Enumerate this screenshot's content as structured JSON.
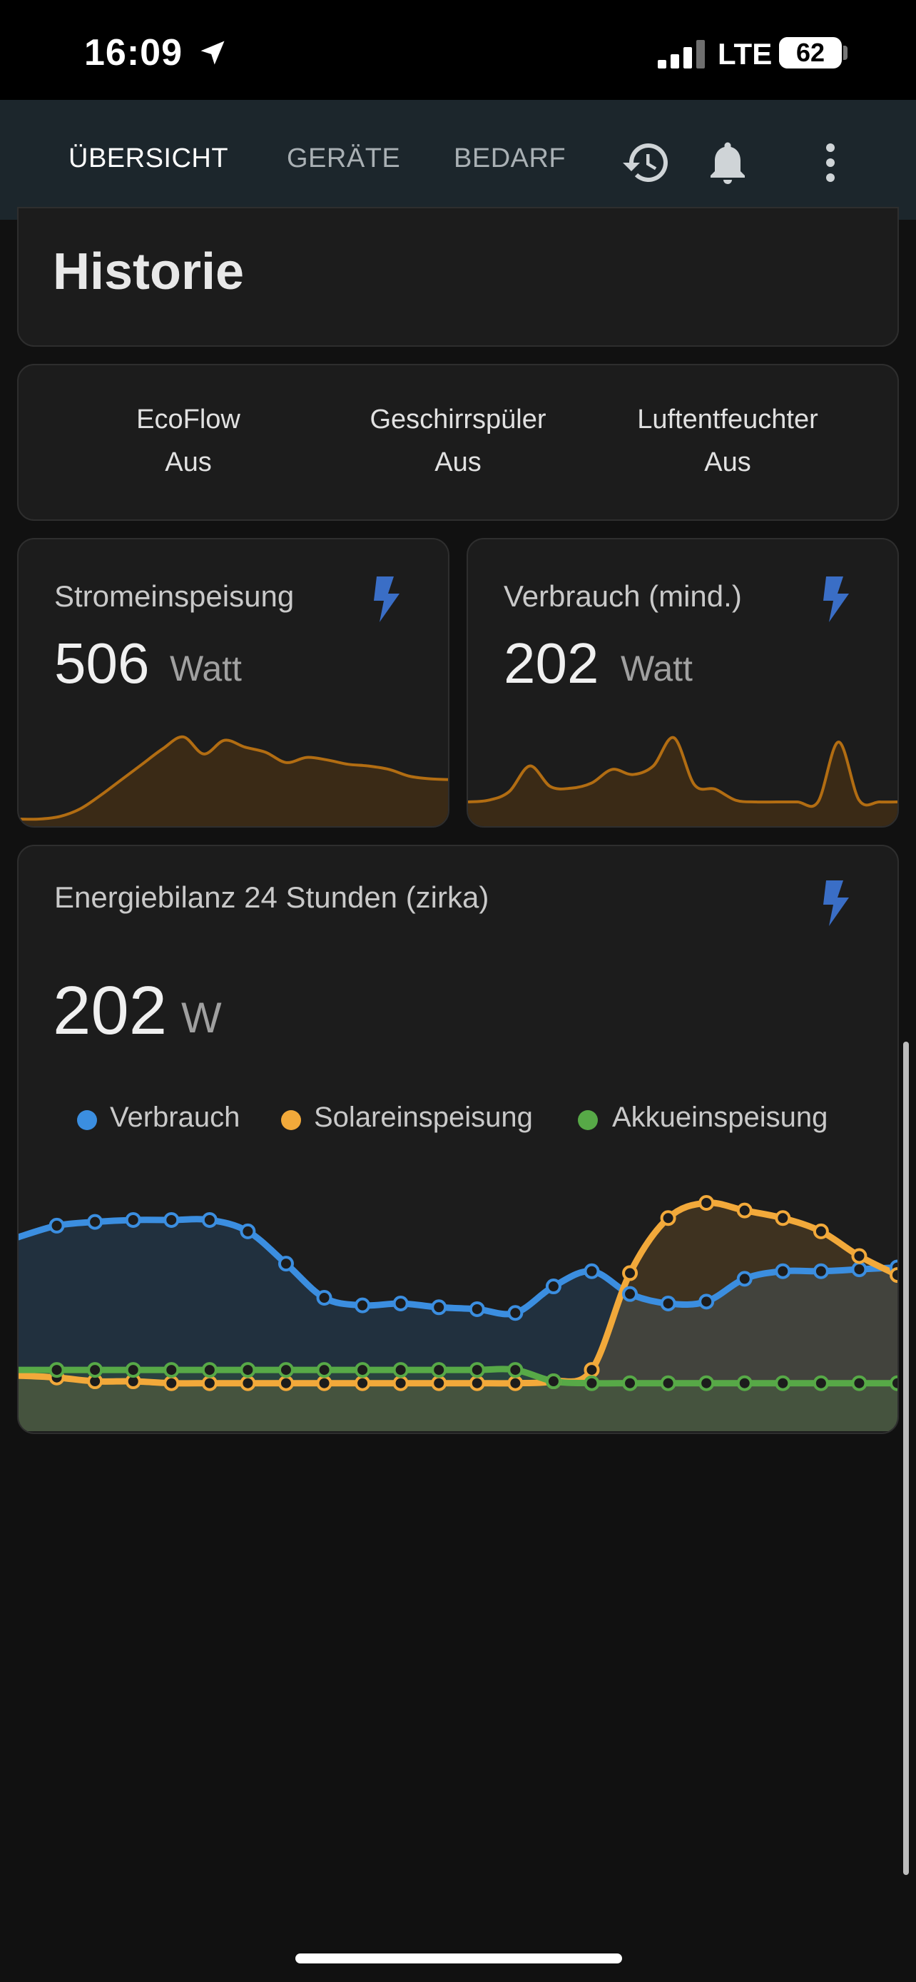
{
  "status_bar": {
    "time": "16:09",
    "network": "LTE",
    "battery": "62",
    "battery_level": 0.62
  },
  "tabs": [
    {
      "label": "ÜBERSICHT",
      "active": true
    },
    {
      "label": "GERÄTE",
      "active": false
    },
    {
      "label": "BEDARF",
      "active": false
    }
  ],
  "appbar_icons": [
    "history-icon",
    "bell-icon",
    "more-vertical-icon"
  ],
  "historie": {
    "title": "Historie"
  },
  "devices": [
    {
      "name": "EcoFlow",
      "state": "Aus"
    },
    {
      "name": "Geschirrspüler",
      "state": "Aus"
    },
    {
      "name": "Luftentfeuchter",
      "state": "Aus"
    }
  ],
  "sensors": [
    {
      "name": "Stromeinspeisung",
      "value": "506",
      "unit": "Watt",
      "icon": "flash-icon"
    },
    {
      "name": "Verbrauch (mind.)",
      "value": "202",
      "unit": "Watt",
      "icon": "flash-icon"
    }
  ],
  "energy": {
    "title": "Energiebilanz 24 Stunden (zirka)",
    "value": "202",
    "unit": "W",
    "icon": "flash-icon"
  },
  "colors": {
    "accent_blue": "#448aff",
    "chart_blue": "#3b8ee0",
    "chart_orange": "#f2a93a",
    "chart_green": "#57a947",
    "spark_orange": "#b26d12"
  },
  "chart_data": [
    {
      "type": "area",
      "series": [
        {
          "values": [
            0.0,
            0.0,
            0.03,
            0.12,
            0.28,
            0.46,
            0.64,
            0.82,
            0.96,
            0.76,
            0.92,
            0.84,
            0.78,
            0.66,
            0.72,
            0.69,
            0.64,
            0.62,
            0.58,
            0.5,
            0.47,
            0.46
          ]
        }
      ]
    },
    {
      "type": "area",
      "series": [
        {
          "values": [
            0.2,
            0.22,
            0.32,
            0.62,
            0.38,
            0.36,
            0.42,
            0.58,
            0.52,
            0.62,
            0.95,
            0.4,
            0.35,
            0.22,
            0.2,
            0.2,
            0.2,
            0.2,
            0.9,
            0.22,
            0.2,
            0.2
          ]
        }
      ]
    },
    {
      "type": "line",
      "legend": "top",
      "series": [
        {
          "name": "Verbrauch",
          "color": "#3b8ee0",
          "values": [
            0.82,
            0.88,
            0.9,
            0.91,
            0.91,
            0.91,
            0.85,
            0.68,
            0.5,
            0.46,
            0.47,
            0.45,
            0.44,
            0.42,
            0.56,
            0.64,
            0.52,
            0.47,
            0.48,
            0.6,
            0.64,
            0.64,
            0.65,
            0.66
          ]
        },
        {
          "name": "Solareinspeisung",
          "color": "#f2a93a",
          "values": [
            0.09,
            0.08,
            0.06,
            0.06,
            0.05,
            0.05,
            0.05,
            0.05,
            0.05,
            0.05,
            0.05,
            0.05,
            0.05,
            0.05,
            0.06,
            0.12,
            0.63,
            0.92,
            1.0,
            0.96,
            0.92,
            0.85,
            0.72,
            0.62
          ]
        },
        {
          "name": "Akkueinspeisung",
          "color": "#57a947",
          "values": [
            0.12,
            0.12,
            0.12,
            0.12,
            0.12,
            0.12,
            0.12,
            0.12,
            0.12,
            0.12,
            0.12,
            0.12,
            0.12,
            0.12,
            0.06,
            0.05,
            0.05,
            0.05,
            0.05,
            0.05,
            0.05,
            0.05,
            0.05,
            0.05
          ]
        }
      ]
    }
  ]
}
